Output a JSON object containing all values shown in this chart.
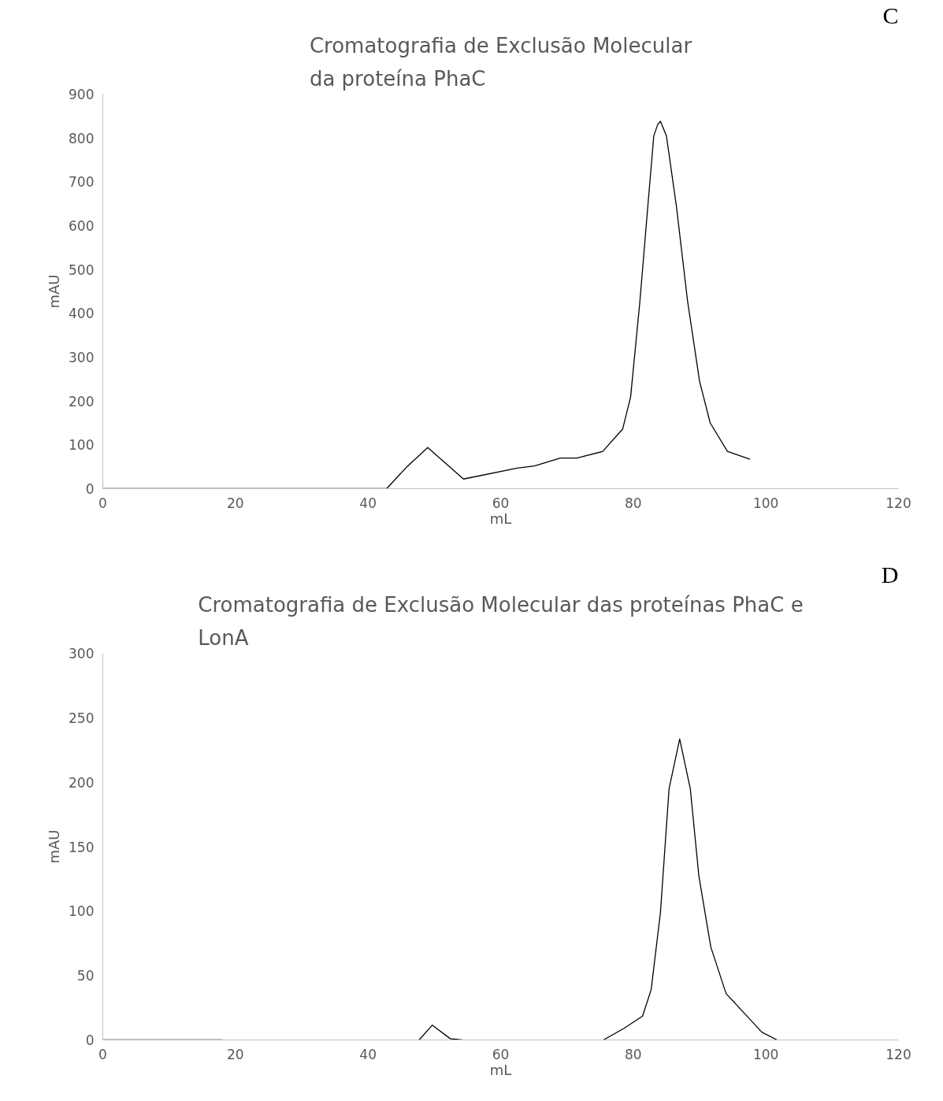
{
  "chart_data": [
    {
      "type": "line",
      "title": "Cromatografia de Exclusão Molecular\nda proteína PhaC",
      "xlabel": "mL",
      "ylabel": "mAU",
      "annotations": [
        "C"
      ],
      "x": [
        0,
        20,
        42.8,
        45.8,
        49.0,
        54.4,
        62.5,
        65.1,
        69.0,
        71.5,
        75.4,
        78.4,
        79.6,
        81.0,
        82.2,
        83.1,
        83.7,
        84.1,
        85.0,
        86.5,
        88.2,
        90.0,
        91.6,
        94.2,
        97.6
      ],
      "series": [
        {
          "color": "#000000",
          "values": [
            0,
            0,
            0,
            49,
            94,
            22,
            47,
            52,
            70,
            70,
            85,
            136,
            209,
            427,
            645,
            805,
            831,
            838,
            805,
            645,
            427,
            245,
            150,
            85,
            67
          ]
        }
      ],
      "xlim": [
        0,
        120
      ],
      "xticks": [
        0,
        20,
        40,
        60,
        80,
        100,
        120
      ],
      "ylim": [
        0,
        900
      ],
      "yticks": [
        0,
        100,
        200,
        300,
        400,
        500,
        600,
        700,
        800,
        900
      ],
      "grid": false,
      "line_style": "solid"
    },
    {
      "type": "line",
      "title": "Cromatografia de Exclusão Molecular das proteínas PhaC e\nLonA",
      "xlabel": "mL",
      "ylabel": "mAU",
      "annotations": [
        "D"
      ],
      "x": [
        0,
        18,
        33,
        47.7,
        49.7,
        52.4,
        54.2,
        65,
        75.5,
        78.6,
        81.4,
        82.7,
        84.1,
        85.4,
        87.0,
        88.6,
        89.9,
        91.7,
        94.0,
        96.7,
        99.4,
        101.7
      ],
      "series": [
        {
          "color": "#000000",
          "values": [
            0,
            0,
            null,
            0,
            11.5,
            1,
            0,
            null,
            0,
            9,
            18.5,
            39,
            99,
            195,
            233.5,
            195,
            127,
            72,
            36,
            21,
            6,
            0
          ]
        }
      ],
      "xlim": [
        0,
        120
      ],
      "xticks": [
        0,
        20,
        40,
        60,
        80,
        100,
        120
      ],
      "ylim": [
        0,
        300
      ],
      "yticks": [
        0,
        50,
        100,
        150,
        200,
        250,
        300
      ],
      "grid": false,
      "line_style": "solid"
    }
  ]
}
